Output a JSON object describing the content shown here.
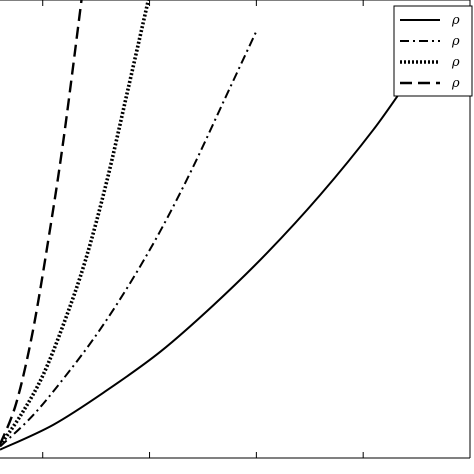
{
  "chart_data": {
    "type": "line",
    "title": "",
    "xlabel": "",
    "ylabel": "",
    "xlim": [
      0,
      4.4
    ],
    "ylim": [
      0,
      4.4
    ],
    "grid": false,
    "legend_placement": "top-right",
    "series": [
      {
        "name": "ρ",
        "style": "solid",
        "x": [
          0.0,
          0.5,
          1.0,
          1.5,
          2.0,
          2.5,
          3.0,
          3.5,
          4.0,
          4.32
        ],
        "y": [
          0.08,
          0.32,
          0.65,
          1.02,
          1.47,
          1.97,
          2.53,
          3.16,
          3.87,
          4.15
        ]
      },
      {
        "name": "ρ",
        "style": "dashdot",
        "x": [
          0.0,
          0.3,
          0.6,
          0.9,
          1.2,
          1.5,
          1.8,
          2.1,
          2.4
        ],
        "y": [
          0.11,
          0.4,
          0.77,
          1.18,
          1.65,
          2.18,
          2.78,
          3.44,
          4.1
        ]
      },
      {
        "name": "ρ",
        "style": "dotted",
        "x": [
          0.0,
          0.2,
          0.4,
          0.6,
          0.8,
          1.0,
          1.2,
          1.4
        ],
        "y": [
          0.12,
          0.42,
          0.79,
          1.3,
          1.9,
          2.66,
          3.55,
          4.45
        ]
      },
      {
        "name": "ρ",
        "style": "dashed",
        "x": [
          0.0,
          0.15,
          0.3,
          0.45,
          0.6,
          0.8
        ],
        "y": [
          0.13,
          0.52,
          1.18,
          2.08,
          3.1,
          4.7
        ]
      }
    ]
  }
}
